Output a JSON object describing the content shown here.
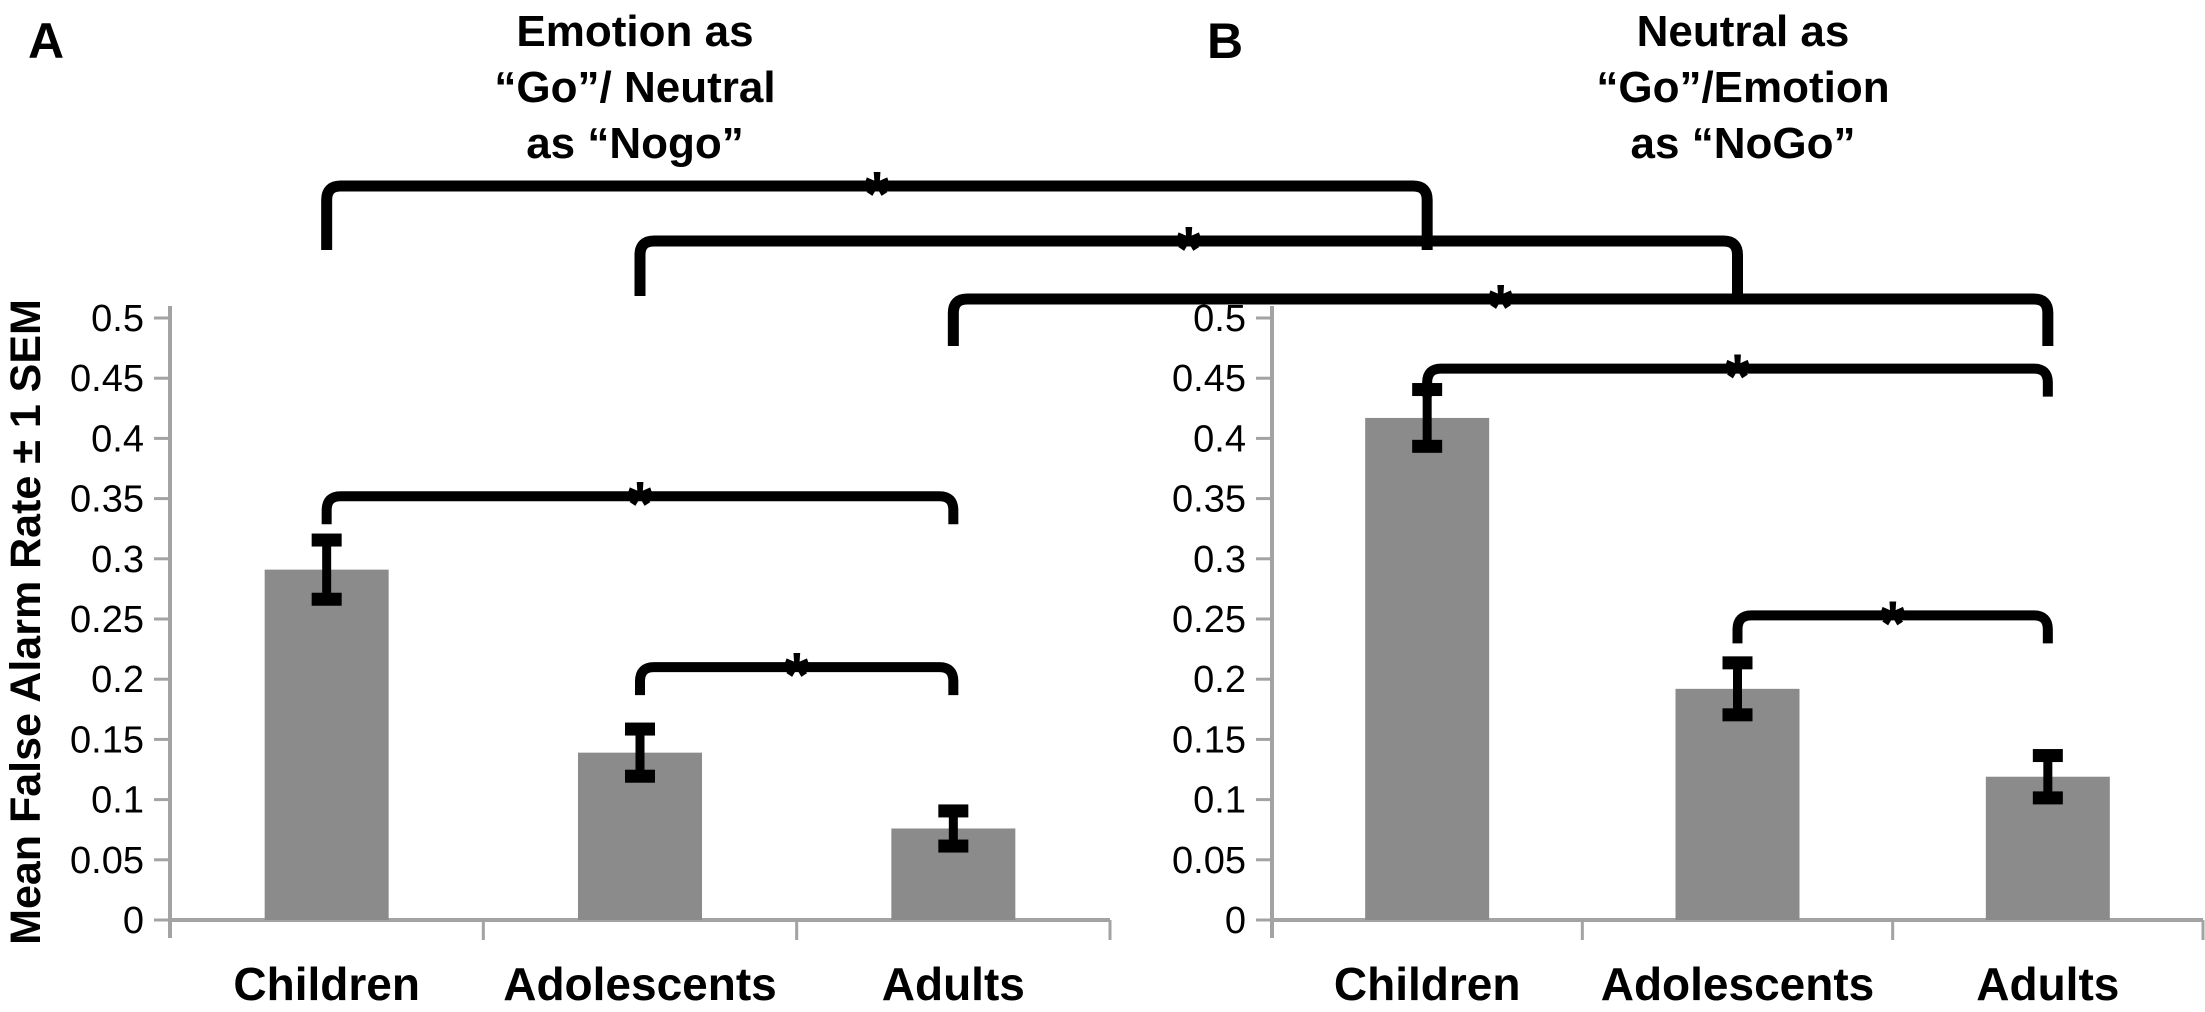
{
  "figure": {
    "y_axis_label": "Mean False Alarm Rate ± 1 SEM",
    "x_category_labels": [
      "Children",
      "Adolescents",
      "Adults"
    ]
  },
  "chart_data": [
    {
      "type": "bar",
      "panel_letter": "A",
      "title": "Emotion as “Go”/ Neutral as “Nogo”",
      "title_lines": [
        "Emotion as",
        "“Go”/ Neutral",
        "as “Nogo”"
      ],
      "categories": [
        "Children",
        "Adolescents",
        "Adults"
      ],
      "values": [
        0.291,
        0.139,
        0.076
      ],
      "errors_sem": [
        0.025,
        0.02,
        0.015
      ],
      "ylabel": "Mean False Alarm Rate ± 1 SEM",
      "ylim": [
        0,
        0.5
      ],
      "ytick_step": 0.05,
      "yticks": [
        "0",
        "0.05",
        "0.1",
        "0.15",
        "0.2",
        "0.25",
        "0.3",
        "0.35",
        "0.4",
        "0.45",
        "0.5"
      ],
      "grid": "off",
      "legend": "none",
      "bar_color": "#8B8B8B",
      "axis_color": "#A3A3A3",
      "sig_brackets": [
        {
          "from": "Children",
          "to": "Adults",
          "at_value": 0.352,
          "label": "*"
        },
        {
          "from": "Adolescents",
          "to": "Adults",
          "at_value": 0.21,
          "label": "*"
        }
      ]
    },
    {
      "type": "bar",
      "panel_letter": "B",
      "title": "Neutral as “Go”/Emotion as “NoGo”",
      "title_lines": [
        "Neutral as",
        "“Go”/Emotion",
        "as “NoGo”"
      ],
      "categories": [
        "Children",
        "Adolescents",
        "Adults"
      ],
      "values": [
        0.417,
        0.192,
        0.119
      ],
      "errors_sem": [
        0.024,
        0.022,
        0.018
      ],
      "ylabel": "Mean False Alarm Rate ± 1 SEM",
      "ylim": [
        0,
        0.5
      ],
      "ytick_step": 0.05,
      "yticks": [
        "0",
        "0.05",
        "0.1",
        "0.15",
        "0.2",
        "0.25",
        "0.3",
        "0.35",
        "0.4",
        "0.45",
        "0.5"
      ],
      "grid": "off",
      "legend": "none",
      "bar_color": "#8B8B8B",
      "axis_color": "#A3A3A3",
      "sig_brackets": [
        {
          "from": "Children",
          "to": "Adults",
          "at_value": 0.458,
          "label": "*"
        },
        {
          "from": "Adolescents",
          "to": "Adults",
          "at_value": 0.253,
          "label": "*"
        }
      ]
    }
  ],
  "cross_panel_brackets": [
    {
      "category": "Children",
      "from_panel": "A",
      "to_panel": "B",
      "label": "*"
    },
    {
      "category": "Adolescents",
      "from_panel": "A",
      "to_panel": "B",
      "label": "*"
    },
    {
      "category": "Adults",
      "from_panel": "A",
      "to_panel": "B",
      "label": "*"
    }
  ]
}
